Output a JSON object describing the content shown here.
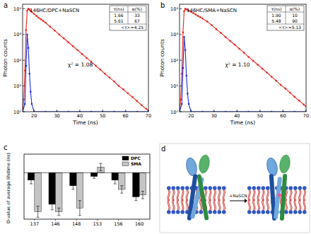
{
  "chart_data": [
    {
      "type": "scatter",
      "panel_label": "a",
      "log": "y",
      "annotations": [
        "146HC/DPC+NaSCN",
        "χ² = 1.08"
      ],
      "fit_table": {
        "header": [
          "τ(ns)",
          "α(%)"
        ],
        "rows": [
          [
            "1.66",
            "33"
          ],
          [
            "5.61",
            "67"
          ]
        ],
        "average": "<τ>=4.25"
      },
      "x_label": "Time (ns)",
      "y_label": "Photon counts",
      "xlim": [
        15,
        70
      ],
      "xticks": [
        20,
        30,
        40,
        50,
        60,
        70
      ],
      "ylim": [
        1,
        15000
      ],
      "yticks": [
        {
          "value": 1,
          "label": "10⁰"
        },
        {
          "value": 10,
          "label": "10¹"
        },
        {
          "value": 100,
          "label": "10²"
        },
        {
          "value": 1000,
          "label": "10³"
        },
        {
          "value": 10000,
          "label": "10⁴"
        }
      ],
      "series": [
        {
          "color": "#e8251f",
          "marker": "circle",
          "line_style": "solid",
          "x": [
            15,
            15.5,
            16,
            16.5,
            17,
            17.5,
            18,
            18.5,
            19,
            20,
            21,
            22,
            23,
            24,
            25,
            27,
            29,
            31,
            33,
            35,
            37,
            39,
            41,
            43,
            45,
            47,
            49,
            51,
            53,
            55,
            57,
            59,
            61,
            63,
            65,
            67,
            69,
            70
          ],
          "values": [
            1,
            3,
            40,
            1500,
            8500,
            10000,
            9200,
            8300,
            7600,
            6300,
            5300,
            4500,
            3900,
            3400,
            2900,
            2030,
            1430,
            1000,
            710,
            500,
            350,
            250,
            175,
            123,
            87,
            61,
            43,
            30,
            21,
            15,
            10,
            7.4,
            5.2,
            3.7,
            2.6,
            1.8,
            1.3,
            1.1
          ]
        },
        {
          "color": "#1c2fd6",
          "marker": "circle",
          "line_style": "solid",
          "x": [
            15,
            16,
            16.5,
            17,
            17.5,
            18,
            18.5,
            19,
            20,
            25,
            30,
            35,
            40,
            45,
            50,
            55,
            60,
            65,
            70
          ],
          "values": [
            1,
            2,
            60,
            1000,
            300,
            30,
            6,
            2,
            1,
            1,
            1,
            1,
            1,
            1,
            1,
            1,
            1,
            1,
            1
          ]
        }
      ]
    },
    {
      "type": "scatter",
      "panel_label": "b",
      "log": "y",
      "annotations": [
        "146HC/SMA+NaSCN",
        "χ² = 1.10"
      ],
      "fit_table": {
        "header": [
          "τ(ns)",
          "α(%)"
        ],
        "rows": [
          [
            "1.90",
            "10"
          ],
          [
            "5.48",
            "90"
          ]
        ],
        "average": "<τ>=5.13"
      },
      "x_label": "Time (ns)",
      "y_label": "Photon counts",
      "xlim": [
        15,
        70
      ],
      "xticks": [
        20,
        30,
        40,
        50,
        60,
        70
      ],
      "ylim": [
        1,
        15000
      ],
      "yticks": [
        {
          "value": 1,
          "label": "10⁰"
        },
        {
          "value": 10,
          "label": "10¹"
        },
        {
          "value": 100,
          "label": "10²"
        },
        {
          "value": 1000,
          "label": "10³"
        },
        {
          "value": 10000,
          "label": "10⁴"
        }
      ],
      "series": [
        {
          "color": "#e8251f",
          "marker": "circle",
          "line_style": "solid",
          "x": [
            15,
            15.5,
            16,
            16.5,
            17,
            17.5,
            18,
            18.5,
            19,
            20,
            21,
            22,
            23,
            24,
            25,
            27,
            29,
            31,
            33,
            35,
            37,
            39,
            41,
            43,
            45,
            47,
            49,
            51,
            53,
            55,
            57,
            59,
            61,
            63,
            65,
            67,
            69,
            70
          ],
          "values": [
            1,
            3,
            30,
            1200,
            8000,
            10000,
            9500,
            9000,
            8500,
            7600,
            6800,
            6000,
            5300,
            4700,
            4200,
            3200,
            2300,
            1600,
            1150,
            800,
            560,
            400,
            280,
            195,
            135,
            95,
            67,
            47,
            33,
            23,
            16,
            11,
            8,
            5.5,
            3.8,
            2.7,
            1.9,
            1.6
          ]
        },
        {
          "color": "#1c2fd6",
          "marker": "circle",
          "line_style": "solid",
          "x": [
            15,
            16,
            16.5,
            17,
            17.5,
            18,
            18.5,
            19,
            20,
            25,
            30,
            35,
            40,
            45,
            50,
            55,
            60,
            65,
            70
          ],
          "values": [
            1,
            2,
            50,
            800,
            250,
            25,
            5,
            2,
            1,
            1,
            1,
            1,
            1,
            1,
            1,
            1,
            1,
            1,
            1
          ]
        }
      ]
    },
    {
      "type": "bar",
      "panel_label": "c",
      "y_label": "D-value of average lifetime (ns)",
      "categories": [
        "137",
        "146",
        "148",
        "153",
        "156",
        "160"
      ],
      "ylim": [
        -0.25,
        0.1
      ],
      "tick_labels": "x",
      "legend": "upper right",
      "series": [
        {
          "name": "DPC",
          "color": "#000000",
          "values": [
            -0.04,
            -0.17,
            -0.07,
            -0.02,
            -0.04,
            -0.13
          ],
          "errors": [
            0.02,
            0.03,
            0.02,
            0.01,
            0.02,
            0.02
          ]
        },
        {
          "name": "SMA",
          "color": "#c4c4c4",
          "values": [
            -0.21,
            -0.21,
            -0.19,
            0.03,
            -0.09,
            -0.12
          ],
          "errors": [
            0.03,
            0.02,
            0.04,
            0.02,
            0.02,
            0.02
          ]
        }
      ]
    }
  ],
  "diagram": {
    "panel_label": "d",
    "arrow_label": "+NaSCN"
  }
}
